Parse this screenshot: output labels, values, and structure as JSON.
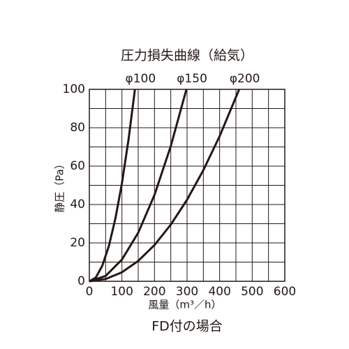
{
  "chart_data": {
    "type": "line",
    "title": "圧力損失曲線（給気）",
    "subtitle": "FD付の場合",
    "x_label": "風量（m³／h）",
    "y_label": "静圧（Pa）",
    "xlim": [
      0,
      600
    ],
    "xticks": [
      0,
      100,
      200,
      300,
      400,
      500,
      600
    ],
    "ylim": [
      0,
      100
    ],
    "yticks": [
      0,
      20,
      40,
      60,
      80,
      100
    ],
    "grid": true,
    "series": [
      {
        "name": "φ100",
        "color": "#231815",
        "x": [
          0,
          20,
          40,
          60,
          80,
          100,
          120,
          140
        ],
        "values": [
          0,
          2.0,
          8.2,
          18.4,
          32.7,
          51,
          73.5,
          100
        ]
      },
      {
        "name": "φ150",
        "color": "#231815",
        "x": [
          0,
          50,
          100,
          150,
          200,
          250,
          298
        ],
        "values": [
          0,
          2.8,
          11.3,
          25.3,
          45,
          70.4,
          100
        ]
      },
      {
        "name": "φ200",
        "color": "#231815",
        "x": [
          0,
          50,
          100,
          150,
          200,
          250,
          300,
          350,
          400,
          460
        ],
        "values": [
          0,
          1.2,
          4.7,
          10.6,
          18.9,
          29.5,
          42.5,
          57.9,
          75.6,
          100
        ]
      }
    ]
  }
}
